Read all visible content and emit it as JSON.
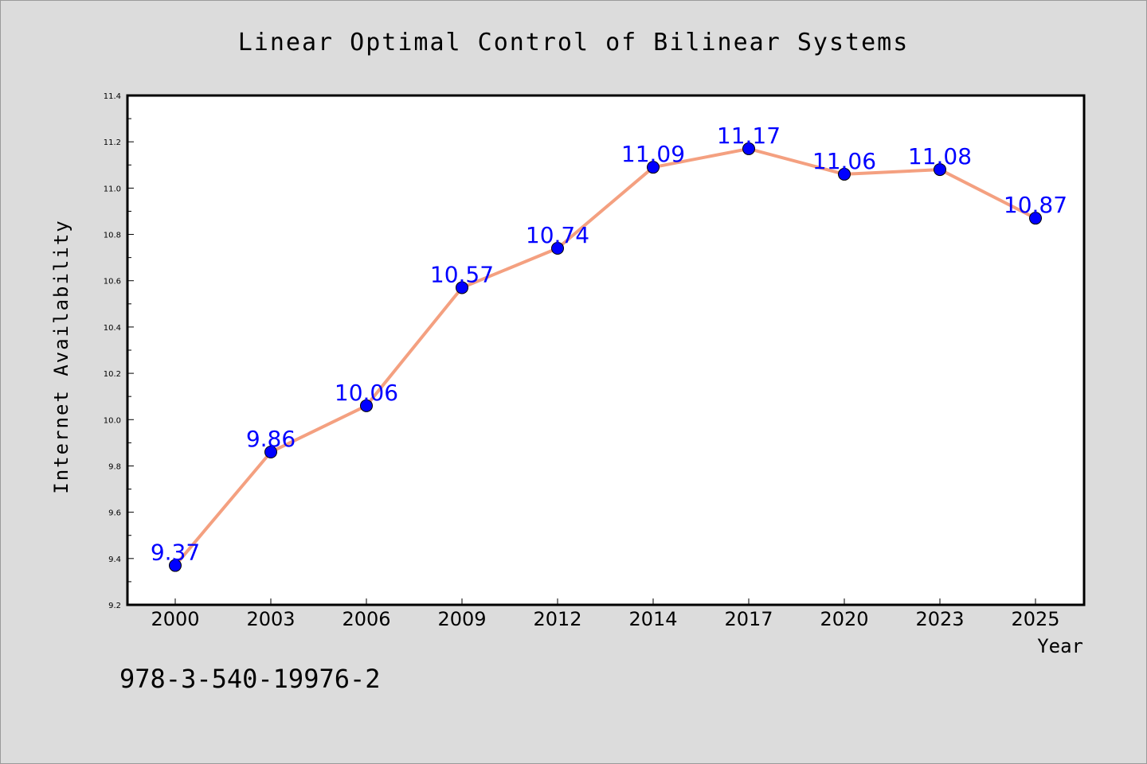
{
  "chart_data": {
    "type": "line",
    "title": "Linear Optimal Control of Bilinear Systems",
    "xlabel": "Year",
    "ylabel": "Internet Availability",
    "categories": [
      "2000",
      "2003",
      "2006",
      "2009",
      "2012",
      "2014",
      "2017",
      "2020",
      "2023",
      "2025"
    ],
    "series": [
      {
        "values": [
          9.37,
          9.86,
          10.06,
          10.57,
          10.74,
          11.09,
          11.17,
          11.06,
          11.08,
          10.87
        ],
        "data_labels": [
          "9.37",
          "9.86",
          "10.06",
          "10.57",
          "10.74",
          "11.09",
          "11.17",
          "11.06",
          "11.08",
          "10.87"
        ],
        "line_color": "#f4a080",
        "marker_color": "#0000ff",
        "label_color": "#0000ff"
      }
    ],
    "ylim": [
      9.2,
      11.4
    ],
    "yticks": [
      "9.2",
      "9.4",
      "9.6",
      "9.8",
      "10.0",
      "10.2",
      "10.4",
      "10.6",
      "10.8",
      "11.0",
      "11.2",
      "11.4"
    ],
    "grid": false,
    "legend": "none",
    "annotation": "978-3-540-19976-2"
  }
}
